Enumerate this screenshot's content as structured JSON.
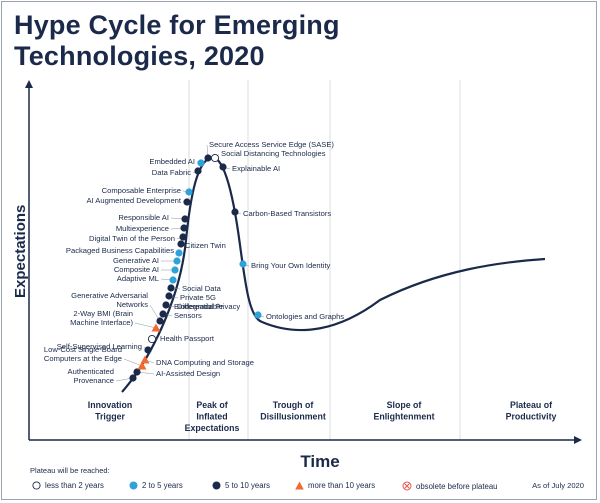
{
  "title": {
    "line1": "Hype Cycle for Emerging",
    "line2": "Technologies, 2020"
  },
  "axes": {
    "y_label": "Expectations",
    "x_label": "Time"
  },
  "phases": [
    {
      "line1": "Innovation",
      "line2": "Trigger",
      "line3": ""
    },
    {
      "line1": "Peak of",
      "line2": "Inflated",
      "line3": "Expectations"
    },
    {
      "line1": "Trough of",
      "line2": "Disillusionment",
      "line3": ""
    },
    {
      "line1": "Slope of",
      "line2": "Enlightenment",
      "line3": ""
    },
    {
      "line1": "Plateau of",
      "line2": "Productivity",
      "line3": ""
    }
  ],
  "technologies": [
    {
      "label": [
        "Authenticated",
        "Provenance"
      ],
      "category": "5 to 10 years"
    },
    {
      "label": [
        "AI-Assisted Design"
      ],
      "category": "5 to 10 years"
    },
    {
      "label": [
        "Low-Cost Single-Board",
        "Computers at the Edge"
      ],
      "category": "more than 10 years"
    },
    {
      "label": [
        "DNA Computing and Storage"
      ],
      "category": "more than 10 years"
    },
    {
      "label": [
        "Self-Supervised Learning"
      ],
      "category": "5 to 10 years"
    },
    {
      "label": [
        "Health Passport"
      ],
      "category": "less than 2 years"
    },
    {
      "label": [
        "2-Way BMI (Brain",
        "Machine Interface)"
      ],
      "category": "more than 10 years"
    },
    {
      "label": [
        "Generative Adversarial",
        "Networks"
      ],
      "category": "5 to 10 years"
    },
    {
      "label": [
        "Biodegradable",
        "Sensors"
      ],
      "category": "5 to 10 years"
    },
    {
      "label": [
        "Differential Privacy"
      ],
      "category": "5 to 10 years"
    },
    {
      "label": [
        "Private 5G"
      ],
      "category": "5 to 10 years"
    },
    {
      "label": [
        "Social Data"
      ],
      "category": "5 to 10 years"
    },
    {
      "label": [
        "Adaptive ML"
      ],
      "category": "2 to 5 years"
    },
    {
      "label": [
        "Composite AI"
      ],
      "category": "2 to 5 years"
    },
    {
      "label": [
        "Generative AI"
      ],
      "category": "2 to 5 years"
    },
    {
      "label": [
        "Packaged Business Capabilities"
      ],
      "category": "2 to 5 years"
    },
    {
      "label": [
        "Citizen Twin"
      ],
      "category": "5 to 10 years"
    },
    {
      "label": [
        "Digital Twin of the Person"
      ],
      "category": "5 to 10 years"
    },
    {
      "label": [
        "Multiexperience"
      ],
      "category": "5 to 10 years"
    },
    {
      "label": [
        "Responsible AI"
      ],
      "category": "5 to 10 years"
    },
    {
      "label": [
        "AI Augmented Development"
      ],
      "category": "5 to 10 years"
    },
    {
      "label": [
        "Composable Enterprise"
      ],
      "category": "2 to 5 years"
    },
    {
      "label": [
        "Data Fabric"
      ],
      "category": "5 to 10 years"
    },
    {
      "label": [
        "Embedded AI"
      ],
      "category": "2 to 5 years"
    },
    {
      "label": [
        "Secure Access Service Edge (SASE)"
      ],
      "category": "5 to 10 years"
    },
    {
      "label": [
        "Social Distancing Technologies"
      ],
      "category": "less than 2 years"
    },
    {
      "label": [
        "Explainable AI"
      ],
      "category": "5 to 10 years"
    },
    {
      "label": [
        "Carbon-Based Transistors"
      ],
      "category": "5 to 10 years"
    },
    {
      "label": [
        "Bring Your Own Identity"
      ],
      "category": "2 to 5 years"
    },
    {
      "label": [
        "Ontologies and Graphs"
      ],
      "category": "2 to 5 years"
    }
  ],
  "legend": {
    "title": "Plateau will be reached:",
    "items": [
      {
        "label": "less than 2 years",
        "symbol": "hollow-circle",
        "color": "#ffffff"
      },
      {
        "label": "2 to 5 years",
        "symbol": "circle",
        "color": "#2fa3d8"
      },
      {
        "label": "5 to 10 years",
        "symbol": "circle",
        "color": "#1b2a4a"
      },
      {
        "label": "more than 10 years",
        "symbol": "triangle",
        "color": "#f26a2e"
      },
      {
        "label": "obsolete before plateau",
        "symbol": "crossed-circle",
        "color": "#e15b54"
      }
    ],
    "as_of": "As of July 2020"
  },
  "colors": {
    "navy": "#1b2a4a",
    "light_blue": "#2fa3d8",
    "orange": "#f26a2e",
    "red": "#e15b54",
    "divider": "#d9dde2"
  }
}
